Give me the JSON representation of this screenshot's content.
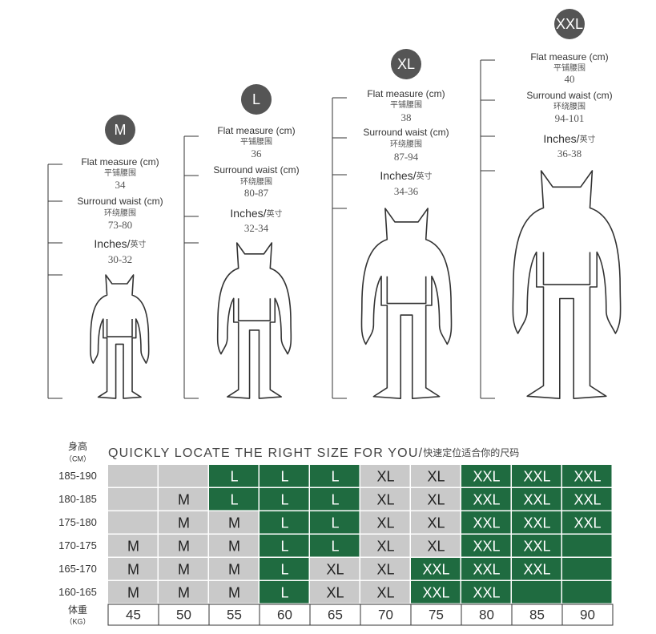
{
  "sizes": [
    {
      "badge": "M",
      "flat_label": "Flat measure (cm)",
      "flat_cn": "平铺腰围",
      "flat_value": "34",
      "waist_label": "Surround waist (cm)",
      "waist_cn": "环绕腰围",
      "waist_value": "73-80",
      "inches_label": "Inches/",
      "inches_cn": "英寸",
      "inches_value": "30-32"
    },
    {
      "badge": "L",
      "flat_label": "Flat measure (cm)",
      "flat_cn": "平铺腰围",
      "flat_value": "36",
      "waist_label": "Surround waist (cm)",
      "waist_cn": "环绕腰围",
      "waist_value": "80-87",
      "inches_label": "Inches/",
      "inches_cn": "英寸",
      "inches_value": "32-34"
    },
    {
      "badge": "XL",
      "flat_label": "Flat measure (cm)",
      "flat_cn": "平铺腰围",
      "flat_value": "38",
      "waist_label": "Surround waist (cm)",
      "waist_cn": "环绕腰围",
      "waist_value": "87-94",
      "inches_label": "Inches/",
      "inches_cn": "英寸",
      "inches_value": "34-36"
    },
    {
      "badge": "XXL",
      "flat_label": "Flat measure (cm)",
      "flat_cn": "平铺腰围",
      "flat_value": "40",
      "waist_label": "Surround waist (cm)",
      "waist_cn": "环绕腰围",
      "waist_value": "94-101",
      "inches_label": "Inches/",
      "inches_cn": "英寸",
      "inches_value": "36-38"
    }
  ],
  "table": {
    "height_label": "身高",
    "height_unit": "（CM）",
    "heading": "QUICKLY LOCATE THE RIGHT SIZE FOR YOU/",
    "heading_cn": "快速定位适合你的尺码",
    "colors": {
      "green": "#1f6b40",
      "grey": "#c9c9c9"
    },
    "rows": [
      {
        "height": "185-190",
        "cells": [
          null,
          null,
          "L",
          "L",
          "L",
          "XL",
          "XL",
          "XXL",
          "XXL",
          "XXL"
        ],
        "fills": [
          "grey",
          "grey",
          "green",
          "green",
          "green",
          "grey",
          "grey",
          "green",
          "green",
          "green"
        ]
      },
      {
        "height": "180-185",
        "cells": [
          null,
          "M",
          "L",
          "L",
          "L",
          "XL",
          "XL",
          "XXL",
          "XXL",
          "XXL"
        ],
        "fills": [
          "grey",
          "grey",
          "green",
          "green",
          "green",
          "grey",
          "grey",
          "green",
          "green",
          "green"
        ]
      },
      {
        "height": "175-180",
        "cells": [
          null,
          "M",
          "M",
          "L",
          "L",
          "XL",
          "XL",
          "XXL",
          "XXL",
          "XXL"
        ],
        "fills": [
          "grey",
          "grey",
          "grey",
          "green",
          "green",
          "grey",
          "grey",
          "green",
          "green",
          "green"
        ]
      },
      {
        "height": "170-175",
        "cells": [
          "M",
          "M",
          "M",
          "L",
          "L",
          "XL",
          "XL",
          "XXL",
          "XXL",
          null
        ],
        "fills": [
          "grey",
          "grey",
          "grey",
          "green",
          "green",
          "grey",
          "grey",
          "green",
          "green",
          "green"
        ]
      },
      {
        "height": "165-170",
        "cells": [
          "M",
          "M",
          "M",
          "L",
          "XL",
          "XL",
          "XXL",
          "XXL",
          "XXL",
          null
        ],
        "fills": [
          "grey",
          "grey",
          "grey",
          "green",
          "grey",
          "grey",
          "green",
          "green",
          "green",
          "green"
        ]
      },
      {
        "height": "160-165",
        "cells": [
          "M",
          "M",
          "M",
          "L",
          "XL",
          "XL",
          "XXL",
          "XXL",
          null,
          null
        ],
        "fills": [
          "grey",
          "grey",
          "grey",
          "green",
          "grey",
          "grey",
          "green",
          "green",
          "green",
          "green"
        ]
      }
    ],
    "weight_label": "体重",
    "weight_unit": "（KG）",
    "weights": [
      45,
      50,
      55,
      60,
      65,
      70,
      75,
      80,
      85,
      90
    ]
  }
}
